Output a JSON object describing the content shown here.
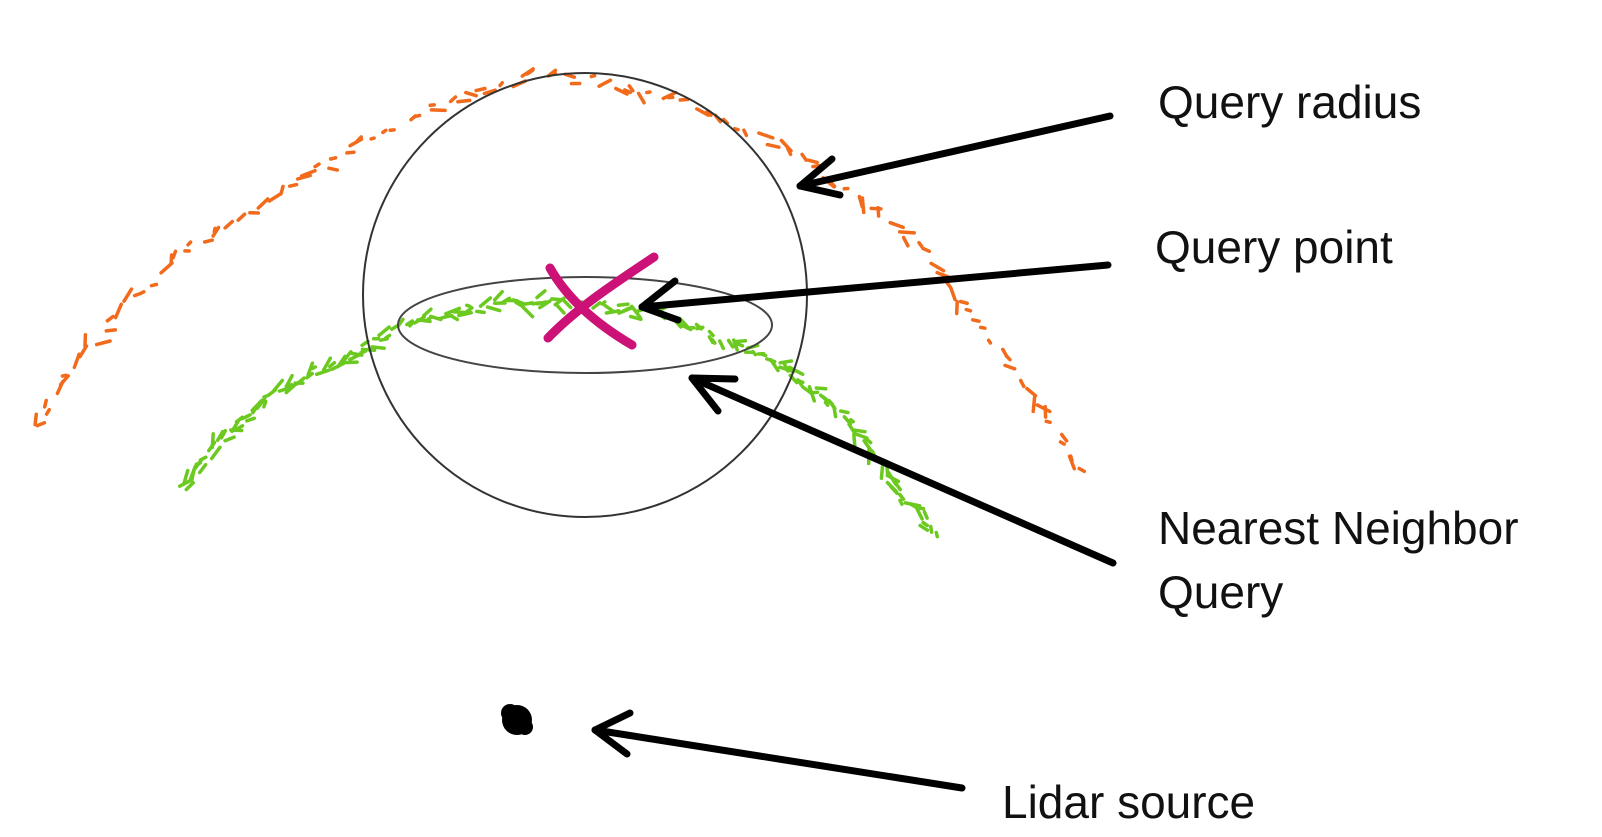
{
  "labels": {
    "query_radius": "Query radius",
    "query_point": "Query point",
    "nn_query_line1": "Nearest Neighbor",
    "nn_query_line2": "Query",
    "lidar_source": "Lidar source"
  },
  "colors": {
    "far_scan": "#f26a1b",
    "near_scan": "#6cc91f",
    "query_point_mark": "#cc1177",
    "outline": "#333333",
    "arrow": "#000000"
  },
  "icons": {
    "query_point": "x-mark",
    "lidar_source": "filled-dot"
  }
}
